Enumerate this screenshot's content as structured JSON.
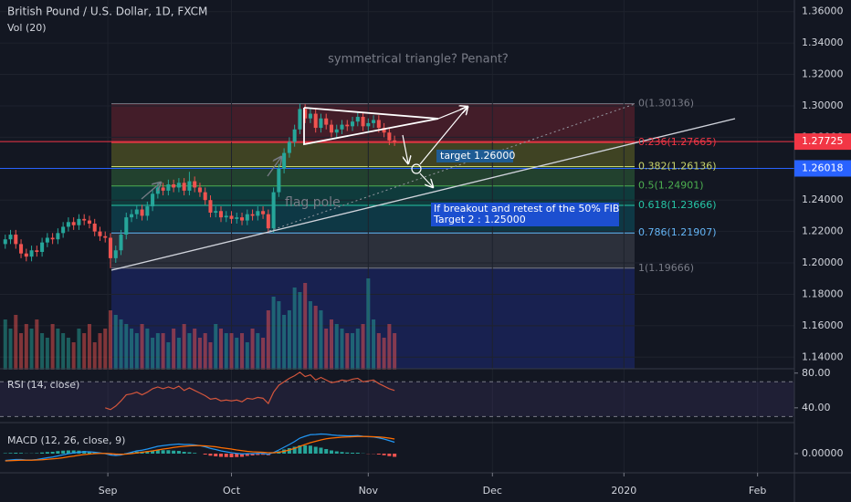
{
  "chart_data": [
    {
      "type": "candlestick",
      "title": "British Pound / U.S. Dollar, 1D, FXCM",
      "x": [
        0,
        1,
        2,
        3,
        4,
        5,
        6,
        7,
        8,
        9,
        10,
        11,
        12,
        13,
        14,
        15,
        16,
        17,
        18,
        19,
        20,
        21,
        22,
        23,
        24,
        25,
        26,
        27,
        28,
        29,
        30,
        31,
        32,
        33,
        34,
        35,
        36,
        37,
        38,
        39,
        40,
        41,
        42,
        43,
        44,
        45,
        46,
        47,
        48,
        49,
        50,
        51,
        52,
        53,
        54,
        55,
        56,
        57,
        58,
        59,
        60,
        61,
        62,
        63,
        64,
        65,
        66,
        67,
        68,
        69,
        70,
        71,
        72,
        73,
        74
      ],
      "open": [
        1.212,
        1.215,
        1.218,
        1.212,
        1.206,
        1.204,
        1.208,
        1.207,
        1.213,
        1.216,
        1.215,
        1.219,
        1.223,
        1.226,
        1.224,
        1.228,
        1.227,
        1.225,
        1.22,
        1.217,
        1.216,
        1.203,
        1.208,
        1.218,
        1.229,
        1.231,
        1.234,
        1.23,
        1.236,
        1.244,
        1.248,
        1.246,
        1.25,
        1.248,
        1.251,
        1.246,
        1.252,
        1.248,
        1.245,
        1.24,
        1.232,
        1.233,
        1.229,
        1.23,
        1.228,
        1.229,
        1.227,
        1.231,
        1.23,
        1.233,
        1.231,
        1.222,
        1.245,
        1.26,
        1.27,
        1.277,
        1.285,
        1.298,
        1.292,
        1.295,
        1.286,
        1.292,
        1.288,
        1.283,
        1.285,
        1.288,
        1.287,
        1.29,
        1.293,
        1.287,
        1.289,
        1.291,
        1.286,
        1.283,
        1.278
      ],
      "high": [
        1.218,
        1.221,
        1.221,
        1.215,
        1.209,
        1.211,
        1.211,
        1.216,
        1.219,
        1.219,
        1.222,
        1.226,
        1.229,
        1.229,
        1.231,
        1.231,
        1.23,
        1.228,
        1.223,
        1.22,
        1.219,
        1.211,
        1.221,
        1.232,
        1.234,
        1.237,
        1.237,
        1.239,
        1.247,
        1.251,
        1.251,
        1.253,
        1.253,
        1.254,
        1.254,
        1.258,
        1.255,
        1.251,
        1.248,
        1.243,
        1.236,
        1.236,
        1.233,
        1.233,
        1.232,
        1.232,
        1.234,
        1.234,
        1.236,
        1.236,
        1.234,
        1.248,
        1.263,
        1.273,
        1.28,
        1.288,
        1.3014,
        1.301,
        1.298,
        1.298,
        1.295,
        1.295,
        1.291,
        1.288,
        1.291,
        1.291,
        1.293,
        1.296,
        1.296,
        1.292,
        1.294,
        1.294,
        1.289,
        1.286,
        1.281
      ],
      "low": [
        1.209,
        1.212,
        1.209,
        1.203,
        1.201,
        1.201,
        1.204,
        1.204,
        1.21,
        1.212,
        1.212,
        1.216,
        1.22,
        1.221,
        1.221,
        1.224,
        1.222,
        1.217,
        1.214,
        1.213,
        1.1966,
        1.2,
        1.205,
        1.215,
        1.226,
        1.228,
        1.227,
        1.227,
        1.233,
        1.241,
        1.243,
        1.243,
        1.245,
        1.245,
        1.243,
        1.243,
        1.245,
        1.242,
        1.237,
        1.229,
        1.229,
        1.226,
        1.226,
        1.225,
        1.225,
        1.224,
        1.224,
        1.227,
        1.227,
        1.228,
        1.219,
        1.219,
        1.242,
        1.257,
        1.267,
        1.274,
        1.282,
        1.289,
        1.289,
        1.283,
        1.283,
        1.285,
        1.28,
        1.28,
        1.282,
        1.284,
        1.284,
        1.287,
        1.284,
        1.284,
        1.286,
        1.283,
        1.28,
        1.275,
        1.2745
      ],
      "close": [
        1.215,
        1.218,
        1.212,
        1.206,
        1.204,
        1.208,
        1.207,
        1.213,
        1.216,
        1.215,
        1.219,
        1.223,
        1.226,
        1.224,
        1.228,
        1.227,
        1.225,
        1.22,
        1.217,
        1.216,
        1.203,
        1.208,
        1.218,
        1.229,
        1.231,
        1.234,
        1.23,
        1.236,
        1.244,
        1.248,
        1.246,
        1.25,
        1.248,
        1.251,
        1.246,
        1.252,
        1.248,
        1.245,
        1.24,
        1.232,
        1.233,
        1.229,
        1.23,
        1.228,
        1.229,
        1.227,
        1.231,
        1.23,
        1.233,
        1.231,
        1.222,
        1.245,
        1.26,
        1.27,
        1.277,
        1.285,
        1.298,
        1.292,
        1.295,
        1.286,
        1.292,
        1.288,
        1.283,
        1.285,
        1.288,
        1.287,
        1.29,
        1.293,
        1.287,
        1.289,
        1.291,
        1.286,
        1.283,
        1.278,
        1.27725
      ],
      "up_color": "#26a69a",
      "down_color": "#ef5350",
      "xlim": [
        -1,
        150
      ],
      "xticks": [
        {
          "value": 19.5,
          "label": "Sep"
        },
        {
          "value": 43,
          "label": "Oct"
        },
        {
          "value": 69,
          "label": "Nov"
        },
        {
          "value": 92.6,
          "label": "Dec"
        },
        {
          "value": 117.6,
          "label": "2020"
        },
        {
          "value": 143,
          "label": "Feb"
        }
      ],
      "ylim": [
        1.1326,
        1.3674
      ],
      "yticks": [
        {
          "value": 1.14,
          "label": "1.14000"
        },
        {
          "value": 1.16,
          "label": "1.16000"
        },
        {
          "value": 1.18,
          "label": "1.18000"
        },
        {
          "value": 1.2,
          "label": "1.20000"
        },
        {
          "value": 1.22,
          "label": "1.22000"
        },
        {
          "value": 1.24,
          "label": "1.24000"
        },
        {
          "value": 1.26,
          "label": "1.26000"
        },
        {
          "value": 1.28,
          "label": "1.28000"
        },
        {
          "value": 1.3,
          "label": "1.30000"
        },
        {
          "value": 1.32,
          "label": "1.32000"
        },
        {
          "value": 1.34,
          "label": "1.34000"
        },
        {
          "value": 1.36,
          "label": "1.36000"
        }
      ],
      "grid": true,
      "last_price": 1.27725,
      "last_price_color": "#f23645",
      "crosshair_price": 1.26018,
      "crosshair_color": "#2962ff",
      "fib": [
        {
          "price": 1.30136,
          "label": "0(1.30136)",
          "color": "#787b86",
          "fill": "rgba(242,54,69,0.22)"
        },
        {
          "price": 1.27665,
          "label": "0.236(1.27665)",
          "color": "#f23645",
          "fill": "rgba(165,170,40,0.30)"
        },
        {
          "price": 1.26136,
          "label": "0.382(1.26136)",
          "color": "#c8d46a",
          "fill": "rgba(76,175,80,0.28)"
        },
        {
          "price": 1.24901,
          "label": "0.5(1.24901)",
          "color": "#4caf50",
          "fill": "rgba(8,153,129,0.28)"
        },
        {
          "price": 1.23666,
          "label": "0.618(1.23666)",
          "color": "#26c6a6",
          "fill": "rgba(0,150,170,0.26)"
        },
        {
          "price": 1.21907,
          "label": "0.786(1.21907)",
          "color": "#64b5f6",
          "fill": "rgba(120,123,134,0.25)"
        },
        {
          "price": 1.19666,
          "label": "1(1.19666)",
          "color": "#787b86",
          "fill": "rgba(41,60,200,0.28)"
        }
      ],
      "annotations": [
        "symmetrical triangle? Penant?",
        "flag pole",
        "target 1.26000",
        "If breakout and retest of the 50% FIB",
        "Target 2 : 1.25000"
      ]
    },
    {
      "type": "bar",
      "title": "Vol (20)",
      "values": [
        55,
        45,
        60,
        40,
        50,
        45,
        55,
        40,
        35,
        50,
        45,
        40,
        35,
        30,
        45,
        40,
        50,
        30,
        40,
        45,
        65,
        60,
        55,
        50,
        45,
        40,
        50,
        45,
        35,
        40,
        40,
        30,
        45,
        35,
        50,
        40,
        45,
        35,
        40,
        30,
        50,
        45,
        40,
        40,
        35,
        40,
        30,
        45,
        40,
        35,
        65,
        80,
        75,
        60,
        65,
        90,
        85,
        95,
        75,
        70,
        65,
        45,
        55,
        50,
        45,
        40,
        40,
        45,
        50,
        100,
        55,
        40,
        35,
        50,
        40
      ],
      "ylim": [
        0,
        100
      ],
      "colors": [
        "rgba(38,166,154,0.5)",
        "rgba(239,83,80,0.5)"
      ]
    },
    {
      "type": "line",
      "title": "RSI (14, close)",
      "values": [
        null,
        null,
        null,
        null,
        null,
        null,
        null,
        null,
        null,
        null,
        null,
        null,
        null,
        null,
        null,
        null,
        null,
        null,
        null,
        40,
        38,
        42,
        48,
        55,
        56,
        58,
        55,
        58,
        62,
        64,
        62,
        64,
        62,
        65,
        60,
        63,
        60,
        57,
        54,
        50,
        51,
        48,
        49,
        48,
        49,
        47,
        51,
        50,
        52,
        51,
        45,
        58,
        66,
        70,
        74,
        77,
        81,
        76,
        78,
        72,
        75,
        72,
        69,
        70,
        72,
        71,
        73,
        74,
        70,
        71,
        72,
        68,
        65,
        62,
        60
      ],
      "color": "#d2553c",
      "ylim": [
        23,
        85
      ],
      "yticks": [
        {
          "value": 80,
          "label": "80.00"
        },
        {
          "value": 40,
          "label": "40.00"
        }
      ],
      "guides": [
        70,
        30
      ],
      "band_fill": "rgba(126,87,194,0.12)"
    },
    {
      "type": "line",
      "title": "MACD (12, 26, close, 9)",
      "series": [
        {
          "color": "#2196f3",
          "values": [
            -0.003,
            -0.0028,
            -0.0026,
            -0.0026,
            -0.0028,
            -0.0028,
            -0.0026,
            -0.0022,
            -0.0018,
            -0.0015,
            -0.001,
            -0.0005,
            0,
            0.0003,
            0.0006,
            0.0008,
            0.0008,
            0.0006,
            0.0003,
            0,
            -0.0006,
            -0.0008,
            -0.0006,
            0,
            0.0006,
            0.0012,
            0.0015,
            0.002,
            0.0026,
            0.0032,
            0.0035,
            0.0038,
            0.004,
            0.0042,
            0.004,
            0.004,
            0.0038,
            0.0035,
            0.003,
            0.0023,
            0.0018,
            0.0012,
            0.0008,
            0.0004,
            0.0001,
            -0.0001,
            0,
            0,
            0.0001,
            0.0001,
            -0.0003,
            0.0005,
            0.0016,
            0.0028,
            0.004,
            0.0053,
            0.0068,
            0.0076,
            0.0083,
            0.0084,
            0.0086,
            0.0085,
            0.0082,
            0.008,
            0.0079,
            0.0078,
            0.0078,
            0.0079,
            0.0076,
            0.0074,
            0.0073,
            0.0069,
            0.0064,
            0.0057,
            0.005
          ]
        },
        {
          "color": "#ff6d00",
          "values": [
            -0.0032,
            -0.0031,
            -0.003,
            -0.0029,
            -0.0029,
            -0.0029,
            -0.0028,
            -0.0027,
            -0.0025,
            -0.0023,
            -0.0021,
            -0.0018,
            -0.0014,
            -0.0011,
            -0.0007,
            -0.0004,
            -0.0002,
            0,
            0.0001,
            0.0001,
            0,
            -0.0002,
            -0.0003,
            -0.0002,
            0,
            0.0003,
            0.0006,
            0.0009,
            0.0012,
            0.0016,
            0.002,
            0.0023,
            0.0027,
            0.003,
            0.0032,
            0.0034,
            0.0035,
            0.0035,
            0.0034,
            0.0032,
            0.003,
            0.0026,
            0.0023,
            0.002,
            0.0016,
            0.0013,
            0.001,
            0.0008,
            0.0007,
            0.0006,
            0.0004,
            0.0004,
            0.0006,
            0.001,
            0.0016,
            0.0023,
            0.0032,
            0.004,
            0.0048,
            0.0054,
            0.006,
            0.0065,
            0.0068,
            0.007,
            0.0072,
            0.0073,
            0.0074,
            0.0075,
            0.0075,
            0.0075,
            0.0074,
            0.0073,
            0.0071,
            0.0068,
            0.0064
          ]
        }
      ],
      "histogram": [
        0.0002,
        0.0003,
        0.0004,
        0.0003,
        0.0001,
        0.0001,
        0.0002,
        0.0005,
        0.0007,
        0.0008,
        0.0011,
        0.0013,
        0.0014,
        0.0014,
        0.0013,
        0.0012,
        0.001,
        0.0006,
        0.0002,
        -0.0001,
        -0.0006,
        -0.0006,
        -0.0003,
        0.0002,
        0.0006,
        0.0009,
        0.0009,
        0.0011,
        0.0014,
        0.0016,
        0.0015,
        0.0015,
        0.0013,
        0.0012,
        0.0008,
        0.0006,
        0.0003,
        0,
        -0.0004,
        -0.0009,
        -0.0012,
        -0.0014,
        -0.0015,
        -0.0016,
        -0.0015,
        -0.0014,
        -0.001,
        -0.0008,
        -0.0006,
        -0.0005,
        -0.0007,
        0.0001,
        0.001,
        0.0018,
        0.0024,
        0.003,
        0.0036,
        0.0036,
        0.0035,
        0.003,
        0.0026,
        0.002,
        0.0014,
        0.001,
        0.0007,
        0.0005,
        0.0004,
        0.0004,
        0.0001,
        -0.0001,
        -0.0001,
        -0.0004,
        -0.0007,
        -0.0011,
        -0.0014
      ],
      "colors": [
        "#26a69a",
        "#ef5350"
      ],
      "ylim": [
        -0.0072,
        0.0128
      ],
      "yticks": [
        {
          "value": 0,
          "label": "0.00000"
        }
      ]
    }
  ]
}
